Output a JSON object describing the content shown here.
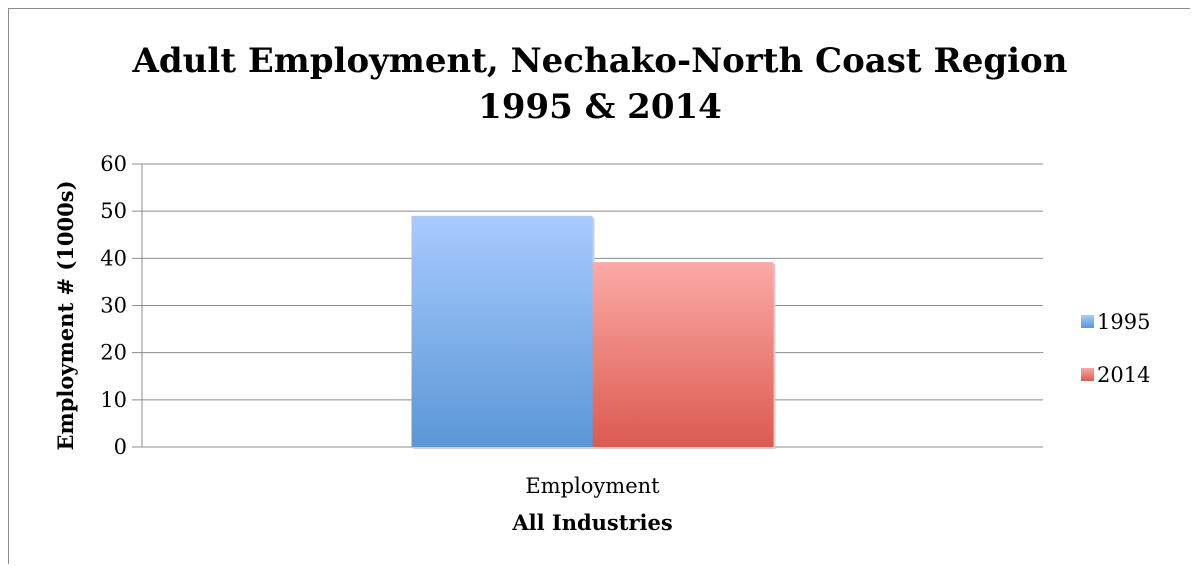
{
  "chart_data": {
    "type": "bar",
    "title": [
      "Adult Employment, Nechako-North Coast Region",
      "1995 & 2014"
    ],
    "categories": [
      "Employment"
    ],
    "xlabel": "All Industries",
    "ylabel": "Employment # (1000s)",
    "ylim": [
      0,
      60
    ],
    "yticks": [
      0,
      10,
      20,
      30,
      40,
      50,
      60
    ],
    "grid": true,
    "legend_position": "right",
    "series": [
      {
        "name": "1995",
        "values": [
          49
        ],
        "color": "#7aaaf0"
      },
      {
        "name": "2014",
        "values": [
          39.2
        ],
        "color": "#e8726a"
      }
    ]
  }
}
